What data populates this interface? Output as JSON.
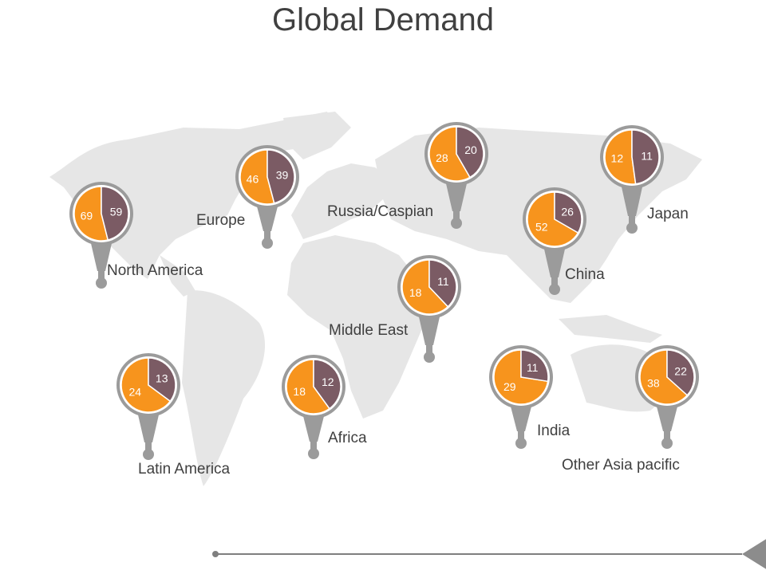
{
  "title": "Global Demand",
  "colors": {
    "orange": "#F7941D",
    "purple": "#7B5B64",
    "pin": "#9B9B9B",
    "map": "#E6E6E6",
    "text": "#404040"
  },
  "chart_data": {
    "type": "pie",
    "title": "Global Demand",
    "regions": [
      {
        "label": "North America",
        "values": [
          69,
          59
        ]
      },
      {
        "label": "Europe",
        "values": [
          46,
          39
        ]
      },
      {
        "label": "Russia/Caspian",
        "values": [
          28,
          20
        ]
      },
      {
        "label": "Japan",
        "values": [
          12,
          11
        ]
      },
      {
        "label": "China",
        "values": [
          52,
          26
        ]
      },
      {
        "label": "Middle East",
        "values": [
          18,
          11
        ]
      },
      {
        "label": "Latin America",
        "values": [
          24,
          13
        ]
      },
      {
        "label": "Africa",
        "values": [
          18,
          12
        ]
      },
      {
        "label": "India",
        "values": [
          29,
          11
        ]
      },
      {
        "label": "Other Asia pacific",
        "values": [
          38,
          22
        ]
      }
    ]
  }
}
